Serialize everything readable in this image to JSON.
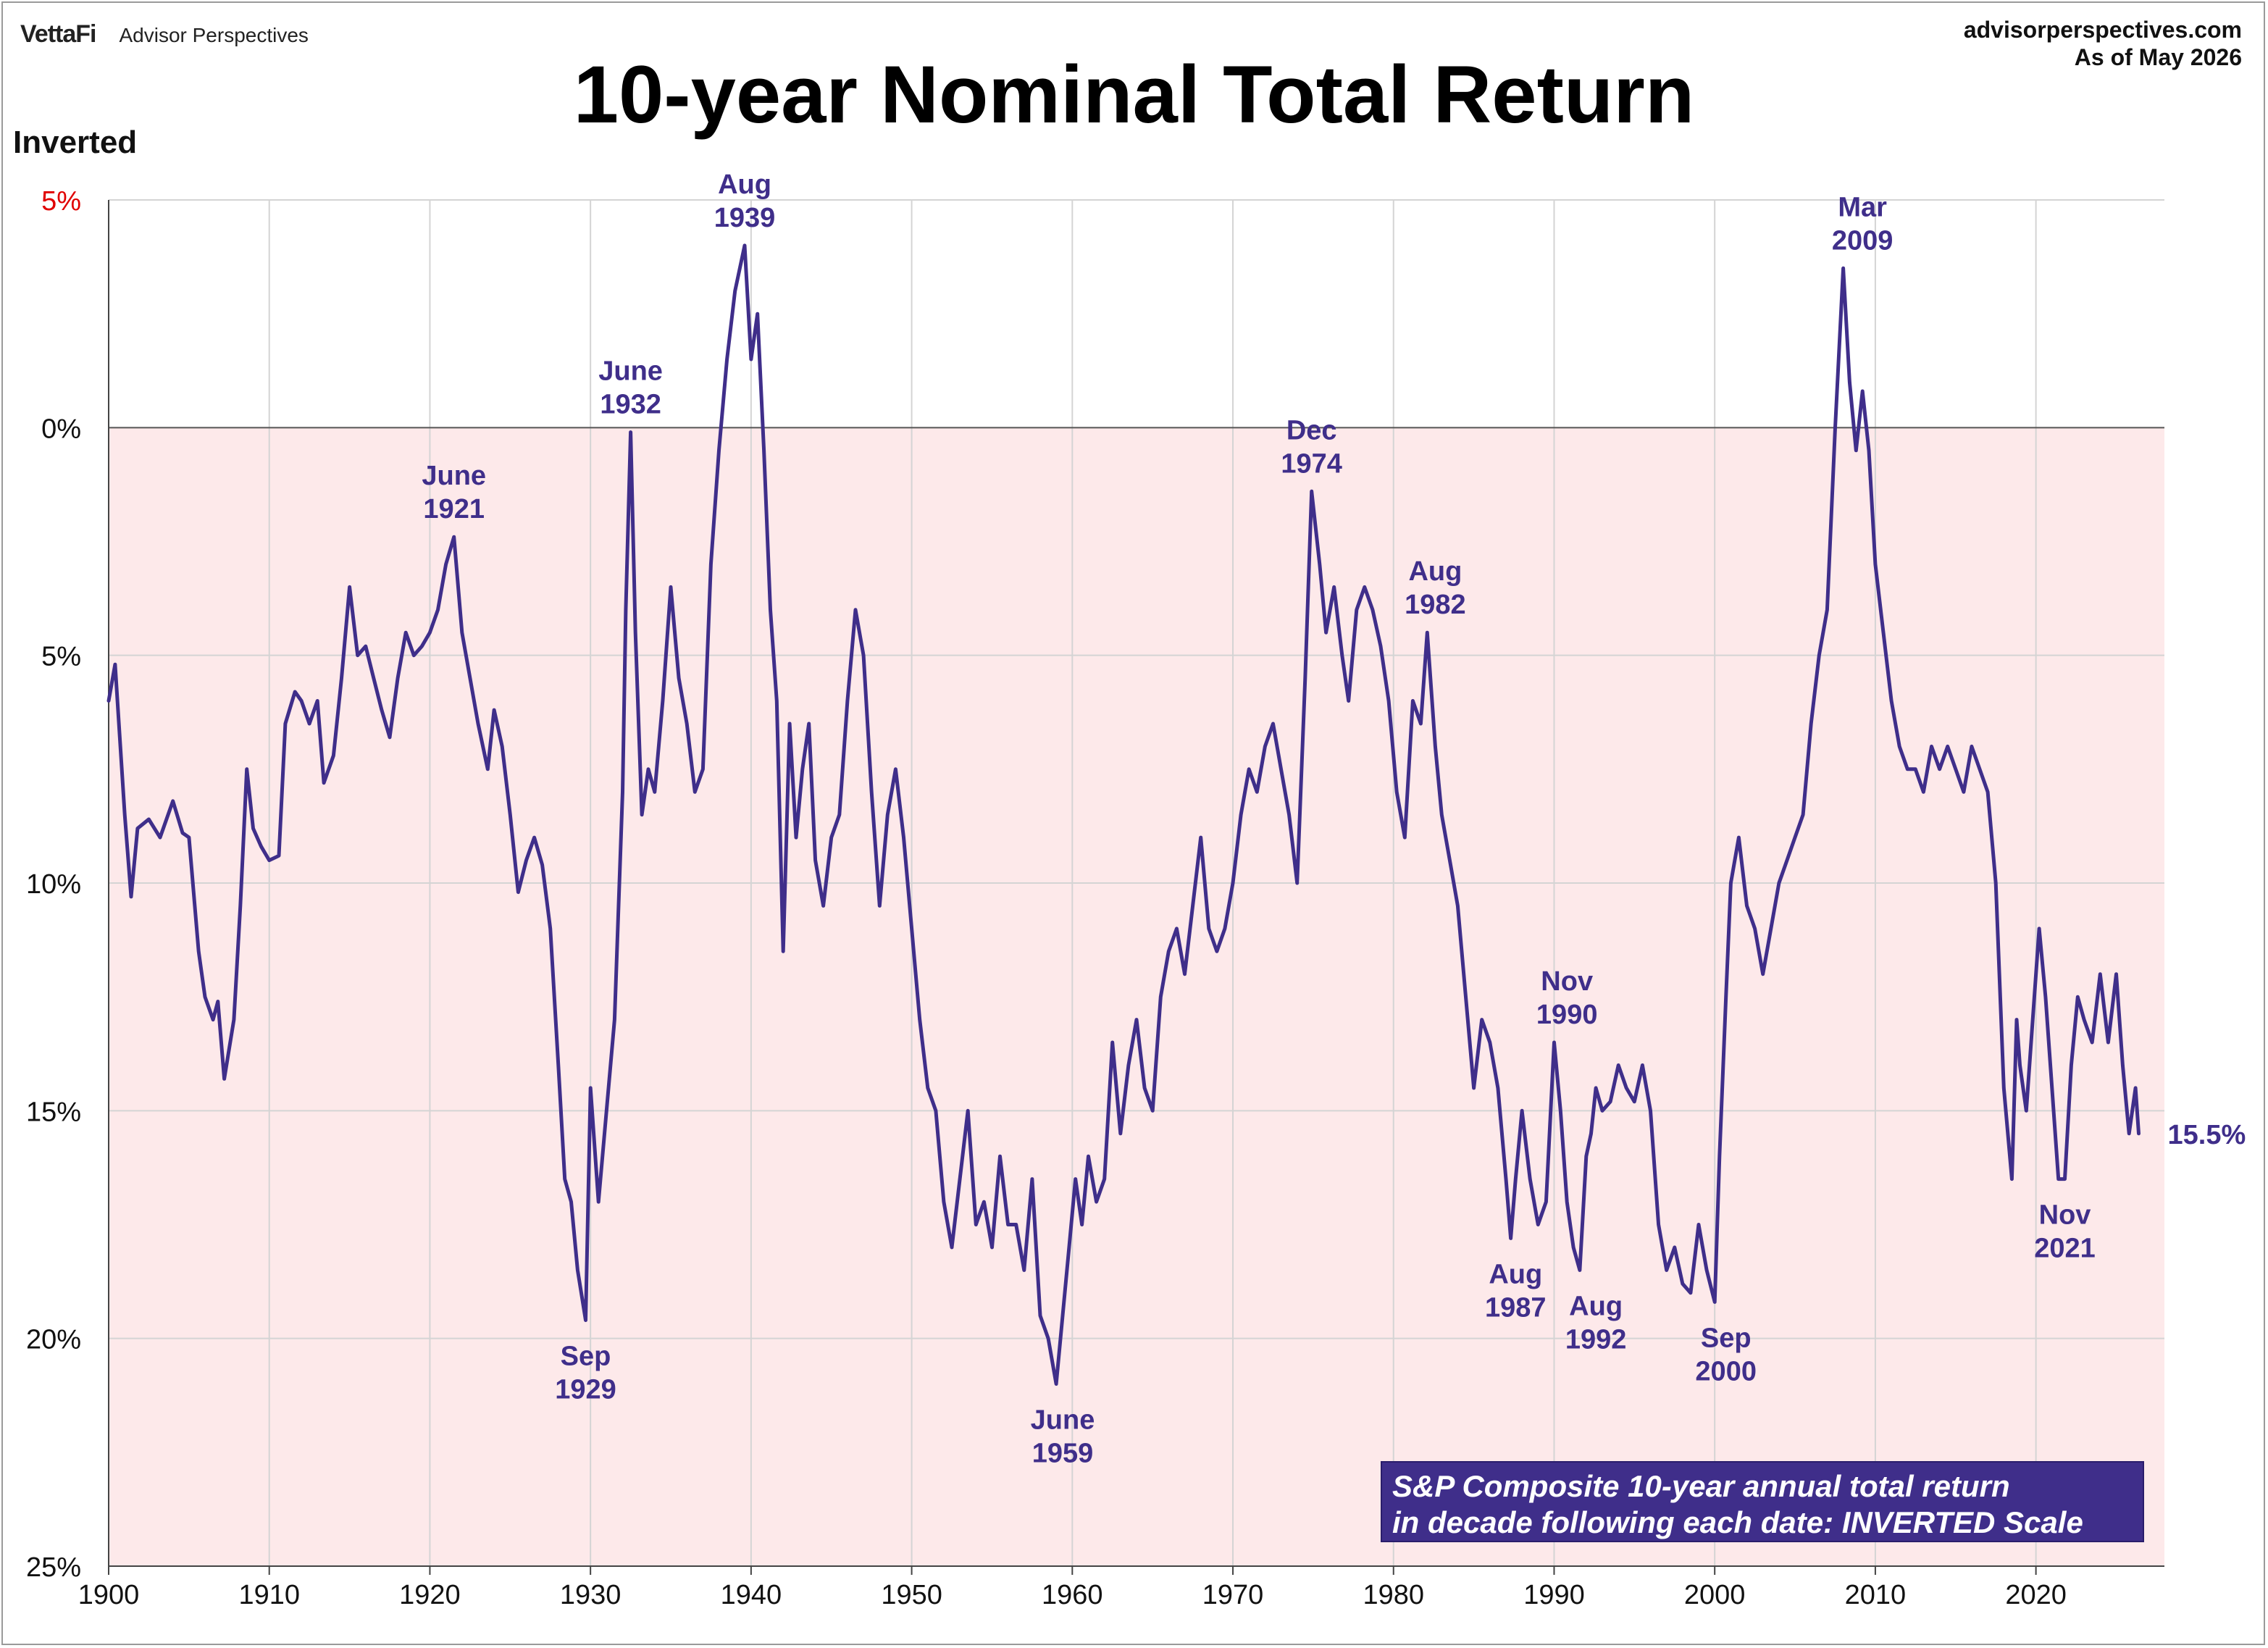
{
  "header": {
    "brand_logo": "VettaFi",
    "brand_sub": "Advisor Perspectives",
    "site": "advisorperspectives.com",
    "as_of": "As of May 2026",
    "title": "10-year Nominal Total Return",
    "scale_note": "Inverted"
  },
  "legend_box": {
    "line1": "S&P Composite 10-year annual total return",
    "line2": "in decade following each date: INVERTED Scale"
  },
  "colors": {
    "series": "#3f2e8a",
    "shade": "#fde9ea",
    "positive_tick": "#e00000",
    "grid": "#d4d4d4",
    "zero_line": "#555555"
  },
  "chart_data": {
    "type": "line",
    "title": "10-year Nominal Total Return",
    "ylabel": "",
    "xlabel": "",
    "y_inverted": true,
    "ylim": [
      -5,
      25
    ],
    "xlim": [
      1900,
      2028
    ],
    "x_ticks": [
      1900,
      1910,
      1920,
      1930,
      1940,
      1950,
      1960,
      1970,
      1980,
      1990,
      2000,
      2010,
      2020
    ],
    "y_ticks": [
      {
        "value": -5,
        "label": "5%"
      },
      {
        "value": 0,
        "label": "0%"
      },
      {
        "value": 5,
        "label": "5%"
      },
      {
        "value": 10,
        "label": "10%"
      },
      {
        "value": 15,
        "label": "15%"
      },
      {
        "value": 20,
        "label": "20%"
      },
      {
        "value": 25,
        "label": "25%"
      }
    ],
    "grid": true,
    "shaded_region": "values above 0%",
    "series": [
      {
        "x": [
          1900.0,
          1900.4,
          1901.0,
          1901.4,
          1901.8,
          1902.5,
          1903.2,
          1904.0,
          1904.6,
          1905.0,
          1905.6,
          1906.0,
          1906.5,
          1906.8,
          1907.2,
          1907.8,
          1908.2,
          1908.6,
          1909.0,
          1909.5,
          1910.0,
          1910.6,
          1911.0,
          1911.6,
          1912.0,
          1912.5,
          1913.0,
          1913.4,
          1914.0,
          1914.5,
          1915.0,
          1915.5,
          1916.0,
          1916.5,
          1917.0,
          1917.5,
          1918.0,
          1918.5,
          1919.0,
          1919.5,
          1920.0,
          1920.5,
          1921.0,
          1921.5,
          1922.0,
          1922.5,
          1923.0,
          1923.6,
          1924.0,
          1924.5,
          1925.0,
          1925.5,
          1926.0,
          1926.5,
          1927.0,
          1927.5,
          1928.0,
          1928.4,
          1928.8,
          1929.2,
          1929.7,
          1930.0,
          1930.5,
          1931.0,
          1931.5,
          1932.0,
          1932.2,
          1932.5,
          1932.8,
          1933.2,
          1933.6,
          1934.0,
          1934.5,
          1935.0,
          1935.5,
          1936.0,
          1936.5,
          1937.0,
          1937.5,
          1938.0,
          1938.5,
          1939.0,
          1939.6,
          1940.0,
          1940.4,
          1940.8,
          1941.2,
          1941.6,
          1942.0,
          1942.4,
          1942.8,
          1943.2,
          1943.6,
          1944.0,
          1944.5,
          1945.0,
          1945.5,
          1946.0,
          1946.5,
          1947.0,
          1947.5,
          1948.0,
          1948.5,
          1949.0,
          1949.5,
          1950.0,
          1950.5,
          1951.0,
          1951.5,
          1952.0,
          1952.5,
          1953.0,
          1953.5,
          1954.0,
          1954.5,
          1955.0,
          1955.5,
          1956.0,
          1956.5,
          1957.0,
          1957.5,
          1958.0,
          1958.5,
          1959.0,
          1959.4,
          1959.8,
          1960.2,
          1960.6,
          1961.0,
          1961.5,
          1962.0,
          1962.5,
          1963.0,
          1963.5,
          1964.0,
          1964.5,
          1965.0,
          1965.5,
          1966.0,
          1966.5,
          1967.0,
          1967.5,
          1968.0,
          1968.5,
          1969.0,
          1969.5,
          1970.0,
          1970.5,
          1971.0,
          1971.5,
          1972.0,
          1972.5,
          1973.0,
          1973.5,
          1974.0,
          1974.5,
          1974.9,
          1975.4,
          1975.8,
          1976.3,
          1976.8,
          1977.2,
          1977.7,
          1978.2,
          1978.7,
          1979.2,
          1979.7,
          1980.2,
          1980.7,
          1981.2,
          1981.7,
          1982.1,
          1982.6,
          1983.0,
          1983.5,
          1984.0,
          1984.5,
          1985.0,
          1985.5,
          1986.0,
          1986.5,
          1987.0,
          1987.3,
          1987.6,
          1988.0,
          1988.5,
          1989.0,
          1989.5,
          1990.0,
          1990.4,
          1990.8,
          1991.2,
          1991.6,
          1992.0,
          1992.3,
          1992.6,
          1993.0,
          1993.5,
          1994.0,
          1994.5,
          1995.0,
          1995.5,
          1996.0,
          1996.5,
          1997.0,
          1997.5,
          1998.0,
          1998.5,
          1999.0,
          1999.5,
          2000.0,
          2000.3,
          2000.7,
          2001.0,
          2001.5,
          2002.0,
          2002.5,
          2003.0,
          2003.5,
          2004.0,
          2004.5,
          2005.0,
          2005.5,
          2006.0,
          2006.5,
          2007.0,
          2007.5,
          2008.0,
          2008.4,
          2008.8,
          2009.2,
          2009.6,
          2010.0,
          2010.5,
          2011.0,
          2011.5,
          2012.0,
          2012.5,
          2013.0,
          2013.5,
          2014.0,
          2014.5,
          2015.0,
          2015.5,
          2016.0,
          2016.5,
          2017.0,
          2017.5,
          2018.0,
          2018.5,
          2018.8,
          2019.0,
          2019.4,
          2019.8,
          2020.2,
          2020.6,
          2021.0,
          2021.4,
          2021.8,
          2022.2,
          2022.6,
          2023.0,
          2023.5,
          2024.0,
          2024.5,
          2025.0,
          2025.4,
          2025.8,
          2026.2,
          2026.4
        ],
        "y": [
          6.0,
          5.2,
          8.5,
          10.3,
          8.8,
          8.6,
          9.0,
          8.2,
          8.9,
          9.0,
          11.5,
          12.5,
          13.0,
          12.6,
          14.3,
          13.0,
          10.5,
          7.5,
          8.8,
          9.2,
          9.5,
          9.4,
          6.5,
          5.8,
          6.0,
          6.5,
          6.0,
          7.8,
          7.2,
          5.5,
          3.5,
          5.0,
          4.8,
          5.5,
          6.2,
          6.8,
          5.5,
          4.5,
          5.0,
          4.8,
          4.5,
          4.0,
          3.0,
          2.4,
          4.5,
          5.5,
          6.5,
          7.5,
          6.2,
          7.0,
          8.5,
          10.2,
          9.5,
          9.0,
          9.6,
          11.0,
          14.0,
          16.5,
          17.0,
          18.5,
          19.6,
          14.5,
          17.0,
          15.0,
          13.0,
          8.0,
          4.0,
          0.1,
          4.5,
          8.5,
          7.5,
          8.0,
          6.0,
          3.5,
          5.5,
          6.5,
          8.0,
          7.5,
          3.0,
          0.5,
          -1.5,
          -3.0,
          -4.0,
          -1.5,
          -2.5,
          0.5,
          4.0,
          6.0,
          11.5,
          6.5,
          9.0,
          7.5,
          6.5,
          9.5,
          10.5,
          9.0,
          8.5,
          6.0,
          4.0,
          5.0,
          8.0,
          10.5,
          8.5,
          7.5,
          9.0,
          11.0,
          13.0,
          14.5,
          15.0,
          17.0,
          18.0,
          16.5,
          15.0,
          17.5,
          17.0,
          18.0,
          16.0,
          17.5,
          17.5,
          18.5,
          16.5,
          19.5,
          20.0,
          21.0,
          19.5,
          18.0,
          16.5,
          17.5,
          16.0,
          17.0,
          16.5,
          13.5,
          15.5,
          14.0,
          13.0,
          14.5,
          15.0,
          12.5,
          11.5,
          11.0,
          12.0,
          10.5,
          9.0,
          11.0,
          11.5,
          11.0,
          10.0,
          8.5,
          7.5,
          8.0,
          7.0,
          6.5,
          7.5,
          8.5,
          10.0,
          5.5,
          1.4,
          3.0,
          4.5,
          3.5,
          5.0,
          6.0,
          4.0,
          3.5,
          4.0,
          4.8,
          6.0,
          8.0,
          9.0,
          6.0,
          6.5,
          4.5,
          7.0,
          8.5,
          9.5,
          10.5,
          12.5,
          14.5,
          13.0,
          13.5,
          14.5,
          16.5,
          17.8,
          16.5,
          15.0,
          16.5,
          17.5,
          17.0,
          13.5,
          15.0,
          17.0,
          18.0,
          18.5,
          16.0,
          15.5,
          14.5,
          15.0,
          14.8,
          14.0,
          14.5,
          14.8,
          14.0,
          15.0,
          17.5,
          18.5,
          18.0,
          18.8,
          19.0,
          17.5,
          18.5,
          19.2,
          16.0,
          12.5,
          10.0,
          9.0,
          10.5,
          11.0,
          12.0,
          11.0,
          10.0,
          9.5,
          9.0,
          8.5,
          6.5,
          5.0,
          4.0,
          0.0,
          -3.5,
          -1.0,
          0.5,
          -0.8,
          0.5,
          3.0,
          4.5,
          6.0,
          7.0,
          7.5,
          7.5,
          8.0,
          7.0,
          7.5,
          7.0,
          7.5,
          8.0,
          7.0,
          7.5,
          8.0,
          10.0,
          14.5,
          16.5,
          13.0,
          14.0,
          15.0,
          13.0,
          11.0,
          12.5,
          14.5,
          16.5,
          16.5,
          14.0,
          12.5,
          13.0,
          13.5,
          12.0,
          13.5,
          12.0,
          14.0,
          15.5,
          14.5,
          15.5
        ]
      }
    ],
    "annotations": [
      {
        "x": 1921.5,
        "y": 2.4,
        "text": "June 1921",
        "lines": [
          "June",
          "1921"
        ],
        "position": "above"
      },
      {
        "x": 1929.7,
        "y": 19.6,
        "text": "Sep 1929",
        "lines": [
          "Sep",
          "1929"
        ],
        "position": "below"
      },
      {
        "x": 1932.5,
        "y": 0.1,
        "text": "June 1932",
        "lines": [
          "June",
          "1932"
        ],
        "position": "above"
      },
      {
        "x": 1939.6,
        "y": -4.0,
        "text": "Aug 1939",
        "lines": [
          "Aug",
          "1939"
        ],
        "position": "above"
      },
      {
        "x": 1959.4,
        "y": 21.0,
        "text": "June 1959",
        "lines": [
          "June",
          "1959"
        ],
        "position": "below"
      },
      {
        "x": 1974.9,
        "y": 1.4,
        "text": "Dec 1974",
        "lines": [
          "Dec",
          "1974"
        ],
        "position": "above"
      },
      {
        "x": 1982.6,
        "y": 4.5,
        "text": "Aug 1982",
        "lines": [
          "Aug",
          "1982"
        ],
        "position": "above"
      },
      {
        "x": 1987.6,
        "y": 17.8,
        "text": "Aug 1987",
        "lines": [
          "Aug",
          "1987"
        ],
        "position": "below"
      },
      {
        "x": 1990.8,
        "y": 13.5,
        "text": "Nov 1990",
        "lines": [
          "Nov",
          "1990"
        ],
        "position": "above"
      },
      {
        "x": 1992.6,
        "y": 18.5,
        "text": "Aug 1992",
        "lines": [
          "Aug",
          "1992"
        ],
        "position": "below"
      },
      {
        "x": 2000.7,
        "y": 19.2,
        "text": "Sep 2000",
        "lines": [
          "Sep",
          "2000"
        ],
        "position": "below"
      },
      {
        "x": 2009.2,
        "y": -3.5,
        "text": "Mar 2009",
        "lines": [
          "Mar",
          "2009"
        ],
        "position": "above"
      },
      {
        "x": 2021.8,
        "y": 16.5,
        "text": "Nov 2021",
        "lines": [
          "Nov",
          "2021"
        ],
        "position": "below"
      }
    ],
    "last_value_label": "15.5%"
  }
}
